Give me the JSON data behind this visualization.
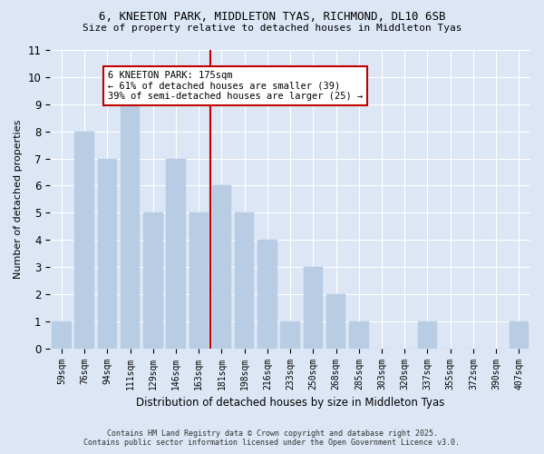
{
  "title_line1": "6, KNEETON PARK, MIDDLETON TYAS, RICHMOND, DL10 6SB",
  "title_line2": "Size of property relative to detached houses in Middleton Tyas",
  "xlabel": "Distribution of detached houses by size in Middleton Tyas",
  "ylabel": "Number of detached properties",
  "categories": [
    "59sqm",
    "76sqm",
    "94sqm",
    "111sqm",
    "129sqm",
    "146sqm",
    "163sqm",
    "181sqm",
    "198sqm",
    "216sqm",
    "233sqm",
    "250sqm",
    "268sqm",
    "285sqm",
    "303sqm",
    "320sqm",
    "337sqm",
    "355sqm",
    "372sqm",
    "390sqm",
    "407sqm"
  ],
  "values": [
    1,
    8,
    7,
    9,
    5,
    7,
    5,
    6,
    5,
    4,
    1,
    3,
    2,
    1,
    0,
    0,
    1,
    0,
    0,
    0,
    1
  ],
  "bar_color": "#b8cce4",
  "bar_edgecolor": "#b8cce4",
  "vline_index": 7,
  "vline_color": "#c00000",
  "annotation_text": "6 KNEETON PARK: 175sqm\n← 61% of detached houses are smaller (39)\n39% of semi-detached houses are larger (25) →",
  "annotation_box_facecolor": "#ffffff",
  "annotation_box_edgecolor": "#c00000",
  "ylim": [
    0,
    11
  ],
  "yticks": [
    0,
    1,
    2,
    3,
    4,
    5,
    6,
    7,
    8,
    9,
    10,
    11
  ],
  "bg_color": "#dce6f5",
  "grid_color": "#ffffff",
  "footer_line1": "Contains HM Land Registry data © Crown copyright and database right 2025.",
  "footer_line2": "Contains public sector information licensed under the Open Government Licence v3.0."
}
